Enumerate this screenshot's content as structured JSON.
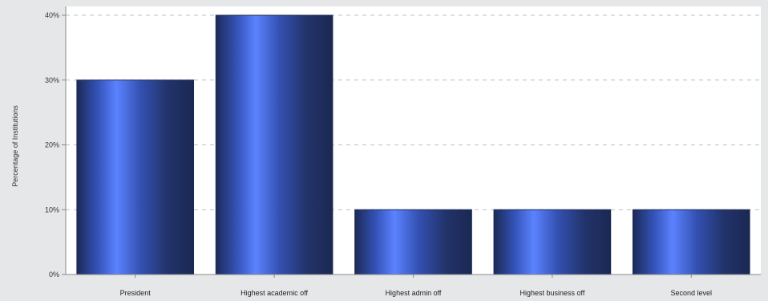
{
  "chart_data": {
    "type": "bar",
    "categories": [
      "President",
      "Highest academic off",
      "Highest admin off",
      "Highest business off",
      "Second level"
    ],
    "values": [
      30,
      40,
      10,
      10,
      10
    ],
    "title": "",
    "xlabel": "",
    "ylabel": "Percentage of Institutions",
    "ylim": [
      0,
      40
    ],
    "yticks": [
      0,
      10,
      20,
      30,
      40
    ],
    "ytick_labels": [
      "0%",
      "10%",
      "20%",
      "30%",
      "40%"
    ],
    "grid": true,
    "legend": "none",
    "colors": {
      "background": "#e6e7e9",
      "plot_area": "#ffffff",
      "bar_edge": "#1b2a55",
      "bar_highlight": "#5b82ff",
      "bar_dark": "#1c2a58",
      "grid": "#bfbfbf"
    }
  }
}
